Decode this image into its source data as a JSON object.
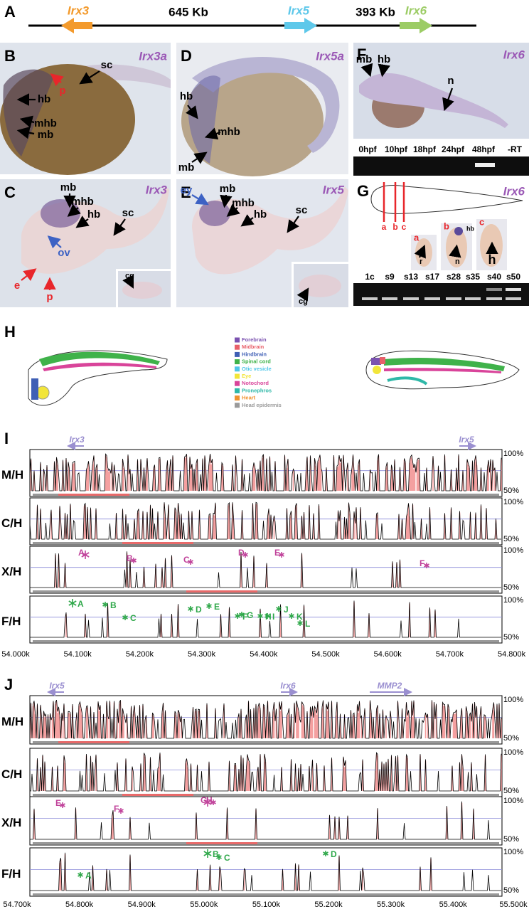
{
  "panel_a": {
    "letter": "A",
    "genes": [
      "Irx3",
      "Irx5",
      "Irx6"
    ],
    "distances": [
      "645 Kb",
      "393 Kb"
    ]
  },
  "panel_b": {
    "letter": "B",
    "gene": "Irx3a",
    "labels": [
      "sc",
      "p",
      "hb",
      "mhb",
      "mb"
    ]
  },
  "panel_c": {
    "letter": "C",
    "gene": "Irx3",
    "labels": [
      "mb",
      "mhb",
      "hb",
      "sc",
      "ov",
      "e",
      "p"
    ],
    "inset_label": "cg"
  },
  "panel_d": {
    "letter": "D",
    "gene": "Irx5a",
    "labels": [
      "hb",
      "mhb",
      "mb"
    ]
  },
  "panel_e": {
    "letter": "E",
    "gene": "Irx5",
    "labels": [
      "ey",
      "mb",
      "mhb",
      "hb",
      "sc"
    ],
    "inset_label": "cg"
  },
  "panel_f": {
    "letter": "F",
    "gene": "Irx6",
    "labels": [
      "mb",
      "hb",
      "n"
    ],
    "gel_lanes": [
      "0hpf",
      "10hpf",
      "18hpf",
      "24hpf",
      "48hpf",
      "-RT"
    ]
  },
  "panel_g": {
    "letter": "G",
    "gene": "Irx6",
    "section_marks": [
      "a",
      "b",
      "c"
    ],
    "inset_letters": [
      "a",
      "b",
      "c"
    ],
    "inset_labels": [
      "r",
      "hb",
      "n",
      "h"
    ],
    "gel_lanes": [
      "1c",
      "s9",
      "s13",
      "s17",
      "s28",
      "s35",
      "s40",
      "s50"
    ]
  },
  "panel_h": {
    "letter": "H",
    "legend": [
      {
        "name": "Forebrain",
        "color": "#7b52b0"
      },
      {
        "name": "Midbrain",
        "color": "#e8606a"
      },
      {
        "name": "Hindbrain",
        "color": "#3f5fb5"
      },
      {
        "name": "Spinal cord",
        "color": "#3fb24a"
      },
      {
        "name": "Otic vesicle",
        "color": "#4fc6e8"
      },
      {
        "name": "Eye",
        "color": "#f2e53a"
      },
      {
        "name": "Notochord",
        "color": "#d9449a"
      },
      {
        "name": "Pronephros",
        "color": "#2fb8a8"
      },
      {
        "name": "Heart",
        "color": "#f0922e"
      },
      {
        "name": "Head epidermis",
        "color": "#9a9a9a"
      }
    ]
  },
  "panel_i": {
    "letter": "I",
    "genes": [
      "Irx3",
      "Irx5"
    ],
    "tracks": [
      "M/H",
      "C/H",
      "X/H",
      "F/H"
    ],
    "scale": [
      "100%",
      "50%"
    ],
    "x_peaks": [
      "A",
      "B",
      "C",
      "D",
      "E",
      "F"
    ],
    "f_peaks": [
      "A",
      "B",
      "C",
      "D",
      "E",
      "F",
      "G",
      "H",
      "I",
      "J",
      "K",
      "L"
    ],
    "axis_ticks": [
      "54.000k",
      "54.100k",
      "54.200k",
      "54.300k",
      "54.400k",
      "54.500k",
      "54.600k",
      "54.700k",
      "54.800k"
    ]
  },
  "panel_j": {
    "letter": "J",
    "genes": [
      "Irx5",
      "Irx6",
      "MMP2"
    ],
    "tracks": [
      "M/H",
      "C/H",
      "X/H",
      "F/H"
    ],
    "scale": [
      "100%",
      "50%"
    ],
    "x_peaks": [
      "E",
      "F",
      "G",
      "H"
    ],
    "f_peaks": [
      "A",
      "B",
      "C",
      "D"
    ],
    "axis_ticks": [
      "54.700k",
      "54.800k",
      "54.900k",
      "55.000k",
      "55.100k",
      "55.200k",
      "55.300k",
      "55.400k",
      "55.500k"
    ]
  }
}
